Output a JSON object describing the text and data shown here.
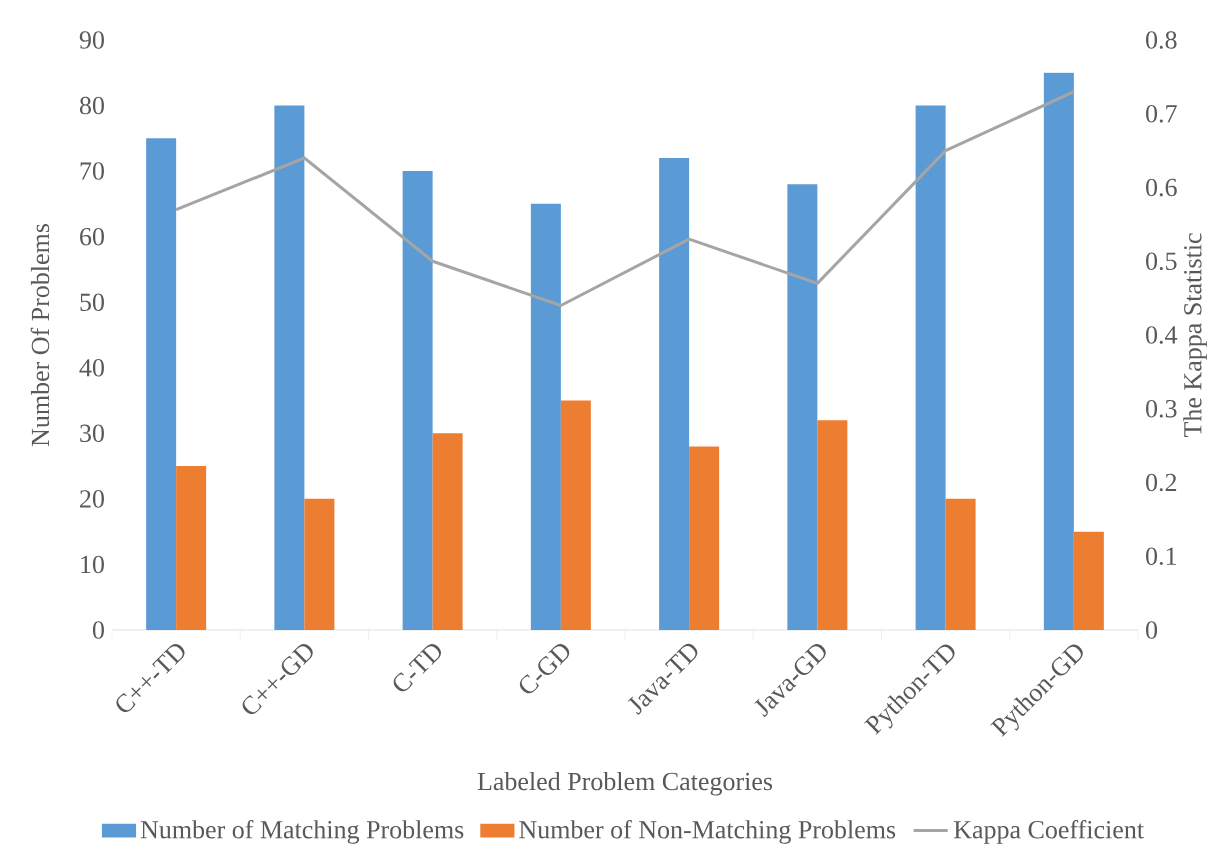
{
  "chart_data": {
    "type": "bar",
    "xlabel": "Labeled Problem Categories",
    "ylabel": "Number Of Problems",
    "y2label": "The Kappa Statistic",
    "categories": [
      "C++-TD",
      "C++-GD",
      "C-TD",
      "C-GD",
      "Java-TD",
      "Java-GD",
      "Python-TD",
      "Python-GD"
    ],
    "series": [
      {
        "name": "Number of Matching Problems",
        "color": "#5b9bd5",
        "values": [
          75,
          80,
          70,
          65,
          72,
          68,
          80,
          85
        ]
      },
      {
        "name": "Number of Non-Matching Problems",
        "color": "#ed7d31",
        "values": [
          25,
          20,
          30,
          35,
          28,
          32,
          20,
          15
        ]
      },
      {
        "name": "Kappa Coefficient",
        "type": "line",
        "axis": "y2",
        "color": "#a5a5a5",
        "values": [
          0.57,
          0.64,
          0.5,
          0.44,
          0.53,
          0.47,
          0.65,
          0.73
        ]
      }
    ],
    "ylim": [
      0,
      90
    ],
    "yticks": [
      0,
      10,
      20,
      30,
      40,
      50,
      60,
      70,
      80,
      90
    ],
    "y2lim": [
      0,
      0.8
    ],
    "y2ticks": [
      0,
      0.1,
      0.2,
      0.3,
      0.4,
      0.5,
      0.6,
      0.7,
      0.8
    ],
    "legend": "bottom"
  }
}
